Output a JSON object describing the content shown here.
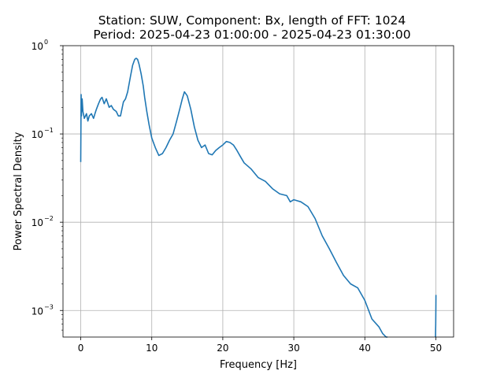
{
  "chart_data": {
    "type": "line",
    "title": "Station: SUW, Component: Bx, length of FFT: 1024",
    "subtitle": "Period: 2025-04-23 01:00:00 - 2025-04-23 01:30:00",
    "xlabel": "Frequency [Hz]",
    "ylabel": "Power Spectral Density",
    "xlim": [
      -2.5,
      52.5
    ],
    "ylim": [
      0.0005,
      1.0
    ],
    "yscale": "log",
    "grid": true,
    "line_color": "#1f77b4",
    "x_ticks": [
      0,
      10,
      20,
      30,
      40,
      50
    ],
    "x_tick_labels": [
      "0",
      "10",
      "20",
      "30",
      "40",
      "50"
    ],
    "y_ticks": [
      0.001,
      0.01,
      0.1,
      1
    ],
    "y_tick_labels": [
      "10",
      "10",
      "10",
      "10"
    ],
    "y_tick_exponents": [
      "−3",
      "−2",
      "−1",
      "0"
    ],
    "series": [
      {
        "x": [
          0.0,
          0.05,
          0.1,
          0.2,
          0.3,
          0.5,
          0.8,
          1.0,
          1.2,
          1.5,
          1.8,
          2.0,
          2.2,
          2.5,
          2.8,
          3.0,
          3.3,
          3.6,
          4.0,
          4.3,
          4.6,
          5.0,
          5.3,
          5.6,
          6.0,
          6.3,
          6.6,
          7.0,
          7.3,
          7.6,
          7.8,
          8.0,
          8.2,
          8.5,
          8.8,
          9.0,
          9.3,
          9.6,
          10.0,
          10.5,
          11.0,
          11.5,
          12.0,
          12.5,
          13.0,
          13.5,
          14.0,
          14.3,
          14.6,
          15.0,
          15.5,
          16.0,
          16.5,
          17.0,
          17.5,
          18.0,
          18.5,
          19.0,
          19.5,
          20.0,
          20.5,
          21.0,
          21.5,
          22.0,
          22.5,
          23.0,
          24.0,
          25.0,
          26.0,
          27.0,
          28.0,
          29.0,
          29.5,
          30.0,
          31.0,
          32.0,
          33.0,
          34.0,
          35.0,
          36.0,
          37.0,
          38.0,
          39.0,
          40.0,
          41.0,
          42.0,
          42.5,
          43.0,
          43.2
        ],
        "y": [
          0.048,
          0.28,
          0.16,
          0.25,
          0.18,
          0.15,
          0.17,
          0.14,
          0.16,
          0.17,
          0.15,
          0.17,
          0.19,
          0.22,
          0.25,
          0.26,
          0.22,
          0.25,
          0.2,
          0.21,
          0.19,
          0.18,
          0.16,
          0.16,
          0.23,
          0.25,
          0.3,
          0.45,
          0.6,
          0.7,
          0.72,
          0.7,
          0.62,
          0.48,
          0.35,
          0.26,
          0.18,
          0.13,
          0.09,
          0.07,
          0.057,
          0.06,
          0.07,
          0.085,
          0.1,
          0.14,
          0.2,
          0.25,
          0.3,
          0.27,
          0.19,
          0.12,
          0.085,
          0.07,
          0.075,
          0.06,
          0.058,
          0.065,
          0.07,
          0.075,
          0.082,
          0.08,
          0.075,
          0.065,
          0.055,
          0.047,
          0.04,
          0.032,
          0.029,
          0.024,
          0.021,
          0.02,
          0.017,
          0.018,
          0.017,
          0.015,
          0.011,
          0.007,
          0.005,
          0.0035,
          0.0025,
          0.002,
          0.0018,
          0.0013,
          0.0008,
          0.00065,
          0.00055,
          0.0005,
          0.0005
        ]
      },
      {
        "x": [
          49.95,
          49.98,
          50.0,
          50.02
        ],
        "y": [
          0.0005,
          0.0007,
          0.0011,
          0.0015
        ]
      }
    ]
  }
}
